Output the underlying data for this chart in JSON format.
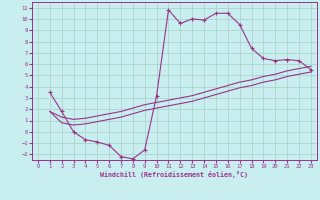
{
  "xlabel": "Windchill (Refroidissement éolien,°C)",
  "bg_color": "#c8eef0",
  "grid_color": "#b0d8d0",
  "line_color": "#993388",
  "spine_color": "#993388",
  "xlim": [
    -0.5,
    23.5
  ],
  "ylim": [
    -2.5,
    11.5
  ],
  "xticks": [
    0,
    1,
    2,
    3,
    4,
    5,
    6,
    7,
    8,
    9,
    10,
    11,
    12,
    13,
    14,
    15,
    16,
    17,
    18,
    19,
    20,
    21,
    22,
    23
  ],
  "yticks": [
    -2,
    -1,
    0,
    1,
    2,
    3,
    4,
    5,
    6,
    7,
    8,
    9,
    10,
    11
  ],
  "curve1_x": [
    1,
    2,
    3,
    4,
    5,
    6,
    7,
    8,
    9,
    10,
    11,
    12,
    13,
    14,
    15,
    16,
    17,
    18,
    19,
    20,
    21,
    22,
    23
  ],
  "curve1_y": [
    3.5,
    1.8,
    0.0,
    -0.7,
    -0.9,
    -1.2,
    -2.2,
    -2.4,
    -1.6,
    3.2,
    10.8,
    9.6,
    10.0,
    9.9,
    10.5,
    10.5,
    9.5,
    7.4,
    6.5,
    6.3,
    6.4,
    6.3,
    5.5
  ],
  "curve2_x": [
    1,
    2,
    3,
    4,
    5,
    6,
    7,
    8,
    9,
    10,
    11,
    12,
    13,
    14,
    15,
    16,
    17,
    18,
    19,
    20,
    21,
    22,
    23
  ],
  "curve2_y": [
    1.8,
    1.3,
    1.1,
    1.2,
    1.4,
    1.6,
    1.8,
    2.1,
    2.4,
    2.6,
    2.8,
    3.0,
    3.2,
    3.5,
    3.8,
    4.1,
    4.4,
    4.6,
    4.9,
    5.1,
    5.4,
    5.6,
    5.8
  ],
  "curve3_x": [
    1,
    2,
    3,
    4,
    5,
    6,
    7,
    8,
    9,
    10,
    11,
    12,
    13,
    14,
    15,
    16,
    17,
    18,
    19,
    20,
    21,
    22,
    23
  ],
  "curve3_y": [
    1.8,
    0.8,
    0.6,
    0.7,
    0.9,
    1.1,
    1.3,
    1.6,
    1.9,
    2.1,
    2.3,
    2.5,
    2.7,
    3.0,
    3.3,
    3.6,
    3.9,
    4.1,
    4.4,
    4.6,
    4.9,
    5.1,
    5.3
  ]
}
